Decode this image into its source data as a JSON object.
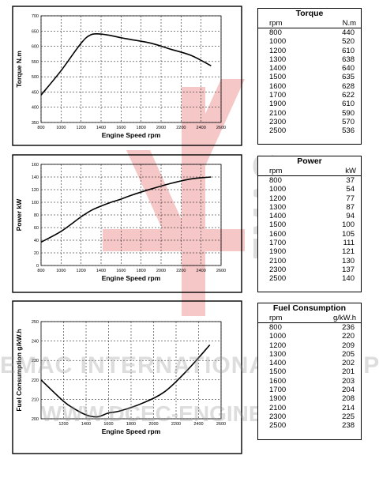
{
  "chart_data": [
    {
      "type": "line",
      "xlabel": "Engine Speed rpm",
      "ylabel": "Torque  N.m",
      "xlim": [
        800,
        2600
      ],
      "ylim": [
        350,
        700
      ],
      "xticks": [
        "800",
        "1000",
        "1200",
        "1400",
        "1600",
        "1800",
        "2000",
        "2200",
        "2400",
        "2600"
      ],
      "yticks": [
        "350",
        "400",
        "450",
        "500",
        "550",
        "600",
        "650",
        "700"
      ],
      "grid": true,
      "x": [
        800,
        1000,
        1200,
        1300,
        1400,
        1500,
        1600,
        1700,
        1900,
        2100,
        2300,
        2500
      ],
      "y": [
        440,
        520,
        610,
        638,
        640,
        635,
        628,
        622,
        610,
        590,
        570,
        536
      ]
    },
    {
      "type": "line",
      "xlabel": "Engine Speed rpm",
      "ylabel": "Power  kW",
      "xlim": [
        800,
        2600
      ],
      "ylim": [
        0,
        160
      ],
      "xticks": [
        "800",
        "1000",
        "1200",
        "1400",
        "1600",
        "1800",
        "2000",
        "2200",
        "2400",
        "2600"
      ],
      "yticks": [
        "0",
        "20",
        "40",
        "60",
        "80",
        "100",
        "120",
        "140",
        "160"
      ],
      "grid": true,
      "x": [
        800,
        1000,
        1200,
        1300,
        1400,
        1500,
        1600,
        1700,
        1900,
        2100,
        2300,
        2500
      ],
      "y": [
        37,
        54,
        77,
        87,
        94,
        100,
        105,
        111,
        121,
        130,
        137,
        140
      ]
    },
    {
      "type": "line",
      "xlabel": "Engine Speed rpm",
      "ylabel": "Fuel Consumption  g/kW.h",
      "xlim": [
        1000,
        2600
      ],
      "ylim": [
        200,
        250
      ],
      "xticks": [
        "1200",
        "1400",
        "1600",
        "1800",
        "2000",
        "2200",
        "2400",
        "2600"
      ],
      "yticks": [
        "200",
        "210",
        "220",
        "230",
        "240",
        "250"
      ],
      "grid": true,
      "x": [
        1000,
        1200,
        1300,
        1400,
        1500,
        1600,
        1700,
        1900,
        2100,
        2300,
        2500
      ],
      "y": [
        220,
        209,
        205,
        202,
        201,
        203,
        204,
        208,
        214,
        225,
        238
      ]
    }
  ],
  "tables": [
    {
      "title": "Torque",
      "col1": "rpm",
      "col2": "N.m",
      "rows": [
        [
          "800",
          "440"
        ],
        [
          "1000",
          "520"
        ],
        [
          "1200",
          "610"
        ],
        [
          "1300",
          "638"
        ],
        [
          "1400",
          "640"
        ],
        [
          "1500",
          "635"
        ],
        [
          "1600",
          "628"
        ],
        [
          "1700",
          "622"
        ],
        [
          "1900",
          "610"
        ],
        [
          "2100",
          "590"
        ],
        [
          "2300",
          "570"
        ],
        [
          "2500",
          "536"
        ]
      ]
    },
    {
      "title": "Power",
      "col1": "rpm",
      "col2": "kW",
      "rows": [
        [
          "800",
          "37"
        ],
        [
          "1000",
          "54"
        ],
        [
          "1200",
          "77"
        ],
        [
          "1300",
          "87"
        ],
        [
          "1400",
          "94"
        ],
        [
          "1500",
          "100"
        ],
        [
          "1600",
          "105"
        ],
        [
          "1700",
          "111"
        ],
        [
          "1900",
          "121"
        ],
        [
          "2100",
          "130"
        ],
        [
          "2300",
          "137"
        ],
        [
          "2500",
          "140"
        ]
      ]
    },
    {
      "title": "Fuel Consumption",
      "col1": "rpm",
      "col2": "g/kW.h",
      "rows": [
        [
          "800",
          "236"
        ],
        [
          "1000",
          "220"
        ],
        [
          "1200",
          "209"
        ],
        [
          "1300",
          "205"
        ],
        [
          "1400",
          "202"
        ],
        [
          "1500",
          "201"
        ],
        [
          "1600",
          "203"
        ],
        [
          "1700",
          "204"
        ],
        [
          "1900",
          "208"
        ],
        [
          "2100",
          "214"
        ],
        [
          "2300",
          "225"
        ],
        [
          "2500",
          "238"
        ]
      ]
    }
  ],
  "watermark": {
    "line1": "EMAC INTERNATIONAL GROUP",
    "line2": "WWW.DCEC-ENGINE.COM",
    "vertical": "EMAC",
    "color": "#e23a3a"
  }
}
